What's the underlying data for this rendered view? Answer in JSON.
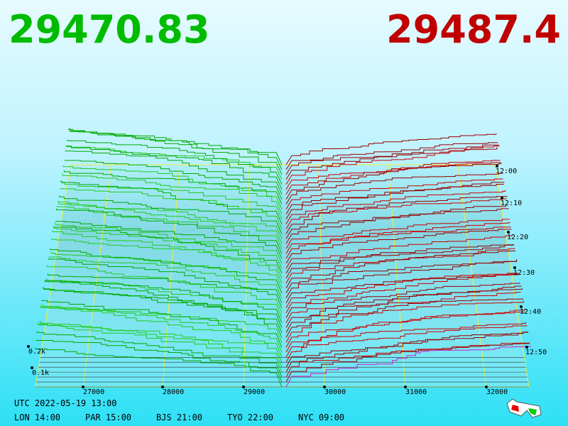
{
  "bid": "29470.83",
  "ask": "29487.4",
  "price_ticks": [
    "27000",
    "28000",
    "29000",
    "30000",
    "31000",
    "32000"
  ],
  "time_ticks": [
    "12:00",
    "12:10",
    "12:20",
    "12:30",
    "12:40",
    "12:50"
  ],
  "depth_ticks": [
    "0.2k",
    "0.1k"
  ],
  "clock": {
    "utc": "UTC 2022-05-19 13:00",
    "cities": [
      "LON 14:00",
      "PAR 15:00",
      "BJS 21:00",
      "TYO 22:00",
      "NYC 09:00"
    ]
  }
}
